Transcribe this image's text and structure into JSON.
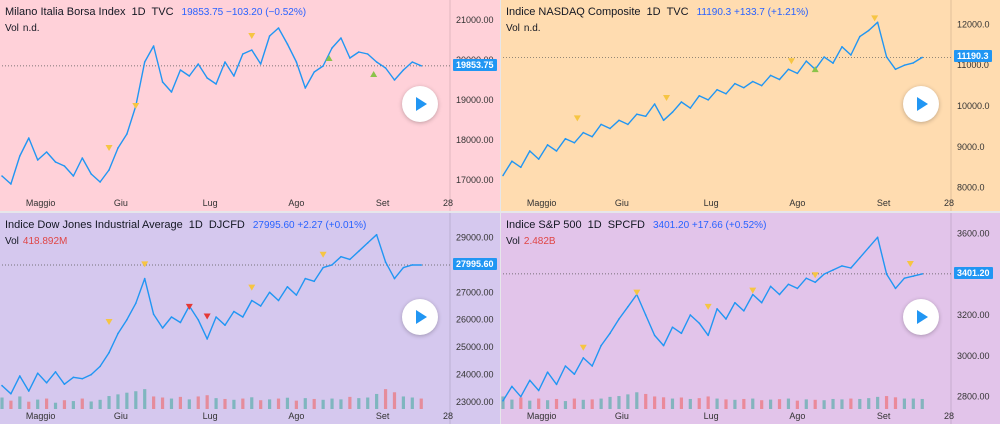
{
  "chart_data": [
    {
      "type": "line",
      "title": "Milano Italia Borsa Index",
      "timeframe": "1D",
      "source": "TVC",
      "quote": "19853.75 −103.20 (−0.52%)",
      "last_label": "19853.75",
      "volume_label": "Vol",
      "volume_value": "n.d.",
      "bg": "#ffd1d9",
      "ylim": [
        16500,
        21300
      ],
      "yticks": [
        {
          "v": 21000,
          "label": "21000.00"
        },
        {
          "v": 20000,
          "label": "20000.00"
        },
        {
          "v": 19000,
          "label": "19000.00"
        },
        {
          "v": 18000,
          "label": "18000.00"
        },
        {
          "v": 17000,
          "label": "17000.00"
        }
      ],
      "xlim": [
        0,
        150
      ],
      "xticks": [
        {
          "v": 13,
          "label": "Maggio"
        },
        {
          "v": 40,
          "label": "Giu"
        },
        {
          "v": 70,
          "label": "Lug"
        },
        {
          "v": 99,
          "label": "Ago"
        },
        {
          "v": 128,
          "label": "Set"
        },
        {
          "v": 150,
          "label": "28"
        }
      ],
      "x": [
        0,
        3,
        6,
        9,
        12,
        15,
        18,
        21,
        24,
        27,
        30,
        33,
        36,
        39,
        42,
        45,
        48,
        51,
        54,
        57,
        60,
        63,
        66,
        69,
        72,
        75,
        78,
        81,
        84,
        87,
        90,
        93,
        96,
        99,
        102,
        105,
        108,
        111,
        114,
        117,
        120,
        123,
        126,
        129,
        132,
        135,
        138,
        141
      ],
      "values": [
        17100,
        16900,
        17600,
        18050,
        17500,
        17700,
        17450,
        17350,
        17100,
        17550,
        17150,
        16950,
        17250,
        17800,
        18150,
        18850,
        19950,
        20350,
        19450,
        19200,
        19750,
        19600,
        19900,
        19550,
        19400,
        19950,
        19600,
        20150,
        20250,
        19900,
        20600,
        20800,
        20400,
        19950,
        19300,
        19700,
        19850,
        20300,
        20550,
        20050,
        20200,
        20150,
        19950,
        19800,
        19500,
        19750,
        19950,
        19853.75
      ],
      "volume": [],
      "markers": [
        {
          "x": 36,
          "v": 17650,
          "kind": "down"
        },
        {
          "x": 45,
          "v": 18700,
          "kind": "down"
        },
        {
          "x": 84,
          "v": 20450,
          "kind": "down"
        },
        {
          "x": 110,
          "v": 20200,
          "kind": "up"
        },
        {
          "x": 125,
          "v": 19800,
          "kind": "up"
        }
      ]
    },
    {
      "type": "line",
      "title": "Indice NASDAQ Composite",
      "timeframe": "1D",
      "source": "TVC",
      "quote": "11190.3 +133.7 (+1.21%)",
      "last_label": "11190.3",
      "volume_label": "Vol",
      "volume_value": "n.d.",
      "bg": "#ffdcb0",
      "ylim": [
        7700,
        12400
      ],
      "yticks": [
        {
          "v": 12000,
          "label": "12000.0"
        },
        {
          "v": 11000,
          "label": "11000.0"
        },
        {
          "v": 10000,
          "label": "10000.0"
        },
        {
          "v": 9000,
          "label": "9000.0"
        },
        {
          "v": 8000,
          "label": "8000.0"
        }
      ],
      "xlim": [
        0,
        150
      ],
      "xticks": [
        {
          "v": 13,
          "label": "Maggio"
        },
        {
          "v": 40,
          "label": "Giu"
        },
        {
          "v": 70,
          "label": "Lug"
        },
        {
          "v": 99,
          "label": "Ago"
        },
        {
          "v": 128,
          "label": "Set"
        },
        {
          "v": 150,
          "label": "28"
        }
      ],
      "x": [
        0,
        3,
        6,
        9,
        12,
        15,
        18,
        21,
        24,
        27,
        30,
        33,
        36,
        39,
        42,
        45,
        48,
        51,
        54,
        57,
        60,
        63,
        66,
        69,
        72,
        75,
        78,
        81,
        84,
        87,
        90,
        93,
        96,
        99,
        102,
        105,
        108,
        111,
        114,
        117,
        120,
        123,
        126,
        129,
        132,
        135,
        138,
        141
      ],
      "values": [
        8300,
        8650,
        8500,
        8900,
        8700,
        9050,
        8900,
        9200,
        9100,
        9350,
        9250,
        9550,
        9450,
        9650,
        9550,
        9800,
        9750,
        10050,
        9650,
        9850,
        10100,
        9950,
        10250,
        10150,
        10400,
        10300,
        10550,
        10450,
        10600,
        10500,
        10750,
        10650,
        10900,
        10800,
        11100,
        10900,
        11200,
        11050,
        11450,
        11250,
        11700,
        11850,
        12050,
        11200,
        10900,
        11000,
        11056,
        11190.3
      ],
      "volume": [],
      "markers": [
        {
          "x": 25,
          "v": 9550,
          "kind": "down"
        },
        {
          "x": 55,
          "v": 10050,
          "kind": "down"
        },
        {
          "x": 97,
          "v": 10950,
          "kind": "down"
        },
        {
          "x": 105,
          "v": 11050,
          "kind": "up"
        },
        {
          "x": 125,
          "v": 12000,
          "kind": "down"
        }
      ]
    },
    {
      "type": "line",
      "title": "Indice Dow Jones Industrial Average",
      "timeframe": "1D",
      "source": "DJCFD",
      "quote": "27995.60 +2.27 (+0.01%)",
      "last_label": "27995.60",
      "volume_label": "Vol",
      "volume_value": "418.892M",
      "bg": "#d5c8ee",
      "ylim": [
        22600,
        29600
      ],
      "yticks": [
        {
          "v": 29000,
          "label": "29000.00"
        },
        {
          "v": 28000,
          "label": "28000.00"
        },
        {
          "v": 27000,
          "label": "27000.00"
        },
        {
          "v": 26000,
          "label": "26000.00"
        },
        {
          "v": 25000,
          "label": "25000.00"
        },
        {
          "v": 24000,
          "label": "24000.00"
        },
        {
          "v": 23000,
          "label": "23000.00"
        }
      ],
      "xlim": [
        0,
        150
      ],
      "xticks": [
        {
          "v": 13,
          "label": "Maggio"
        },
        {
          "v": 40,
          "label": "Giu"
        },
        {
          "v": 70,
          "label": "Lug"
        },
        {
          "v": 99,
          "label": "Ago"
        },
        {
          "v": 128,
          "label": "Set"
        },
        {
          "v": 150,
          "label": "28"
        }
      ],
      "x": [
        0,
        3,
        6,
        9,
        12,
        15,
        18,
        21,
        24,
        27,
        30,
        33,
        36,
        39,
        42,
        45,
        48,
        51,
        54,
        57,
        60,
        63,
        66,
        69,
        72,
        75,
        78,
        81,
        84,
        87,
        90,
        93,
        96,
        99,
        102,
        105,
        108,
        111,
        114,
        117,
        120,
        123,
        126,
        129,
        132,
        135,
        138,
        141
      ],
      "values": [
        23600,
        23300,
        23950,
        23400,
        24050,
        23700,
        24100,
        23650,
        23900,
        23850,
        24000,
        24300,
        24800,
        25500,
        26000,
        26600,
        27500,
        26200,
        25700,
        26100,
        25900,
        26500,
        26000,
        25300,
        26100,
        25800,
        26300,
        26100,
        26700,
        26500,
        27000,
        26700,
        27200,
        26900,
        27500,
        27400,
        27900,
        28000,
        28300,
        28200,
        28500,
        28800,
        29100,
        28100,
        27500,
        27900,
        28000,
        27995.6
      ],
      "volume": [
        0.55,
        0.4,
        0.6,
        0.35,
        0.45,
        0.5,
        0.3,
        0.42,
        0.38,
        0.5,
        0.36,
        0.44,
        0.62,
        0.7,
        0.78,
        0.85,
        0.95,
        0.6,
        0.55,
        0.5,
        0.58,
        0.46,
        0.6,
        0.66,
        0.52,
        0.48,
        0.44,
        0.5,
        0.56,
        0.42,
        0.46,
        0.5,
        0.54,
        0.4,
        0.52,
        0.48,
        0.44,
        0.5,
        0.46,
        0.58,
        0.52,
        0.55,
        0.72,
        0.95,
        0.8,
        0.6,
        0.55,
        0.5
      ],
      "markers": [
        {
          "x": 36,
          "v": 25700,
          "kind": "down"
        },
        {
          "x": 48,
          "v": 27800,
          "kind": "down"
        },
        {
          "x": 63,
          "v": 26250,
          "kind": "sell"
        },
        {
          "x": 69,
          "v": 25900,
          "kind": "sell"
        },
        {
          "x": 84,
          "v": 26950,
          "kind": "down"
        },
        {
          "x": 108,
          "v": 28150,
          "kind": "down"
        }
      ]
    },
    {
      "type": "line",
      "title": "Indice S&P 500",
      "timeframe": "1D",
      "source": "SPCFD",
      "quote": "3401.20 +17.66 (+0.52%)",
      "last_label": "3401.20",
      "volume_label": "Vol",
      "volume_value": "2.482B",
      "bg": "#e2c4ea",
      "ylim": [
        2720,
        3660
      ],
      "yticks": [
        {
          "v": 3600,
          "label": "3600.00"
        },
        {
          "v": 3400,
          "label": "3400.00"
        },
        {
          "v": 3200,
          "label": "3200.00"
        },
        {
          "v": 3000,
          "label": "3000.00"
        },
        {
          "v": 2800,
          "label": "2800.00"
        }
      ],
      "xlim": [
        0,
        150
      ],
      "xticks": [
        {
          "v": 13,
          "label": "Maggio"
        },
        {
          "v": 40,
          "label": "Giu"
        },
        {
          "v": 70,
          "label": "Lug"
        },
        {
          "v": 99,
          "label": "Ago"
        },
        {
          "v": 128,
          "label": "Set"
        },
        {
          "v": 150,
          "label": "28"
        }
      ],
      "x": [
        0,
        3,
        6,
        9,
        12,
        15,
        18,
        21,
        24,
        27,
        30,
        33,
        36,
        39,
        42,
        45,
        48,
        51,
        54,
        57,
        60,
        63,
        66,
        69,
        72,
        75,
        78,
        81,
        84,
        87,
        90,
        93,
        96,
        99,
        102,
        105,
        108,
        111,
        114,
        117,
        120,
        123,
        126,
        129,
        132,
        135,
        138,
        141
      ],
      "values": [
        2780,
        2850,
        2800,
        2880,
        2830,
        2920,
        2860,
        2950,
        2910,
        2990,
        2950,
        3050,
        3110,
        3180,
        3240,
        3300,
        3200,
        3100,
        3050,
        3140,
        3110,
        3200,
        3160,
        3100,
        3230,
        3180,
        3260,
        3220,
        3300,
        3260,
        3340,
        3300,
        3350,
        3330,
        3380,
        3360,
        3400,
        3420,
        3440,
        3430,
        3480,
        3530,
        3580,
        3400,
        3330,
        3380,
        3390,
        3401.2
      ],
      "volume": [
        0.6,
        0.45,
        0.55,
        0.4,
        0.5,
        0.42,
        0.48,
        0.38,
        0.5,
        0.44,
        0.46,
        0.5,
        0.58,
        0.62,
        0.7,
        0.8,
        0.72,
        0.6,
        0.56,
        0.5,
        0.55,
        0.48,
        0.52,
        0.6,
        0.5,
        0.46,
        0.44,
        0.48,
        0.5,
        0.42,
        0.45,
        0.47,
        0.5,
        0.4,
        0.46,
        0.44,
        0.42,
        0.48,
        0.46,
        0.5,
        0.48,
        0.52,
        0.58,
        0.62,
        0.56,
        0.5,
        0.5,
        0.48
      ],
      "markers": [
        {
          "x": 27,
          "v": 3010,
          "kind": "down"
        },
        {
          "x": 45,
          "v": 3280,
          "kind": "down"
        },
        {
          "x": 69,
          "v": 3210,
          "kind": "down"
        },
        {
          "x": 84,
          "v": 3290,
          "kind": "down"
        },
        {
          "x": 105,
          "v": 3365,
          "kind": "down"
        },
        {
          "x": 137,
          "v": 3420,
          "kind": "down"
        }
      ]
    }
  ]
}
